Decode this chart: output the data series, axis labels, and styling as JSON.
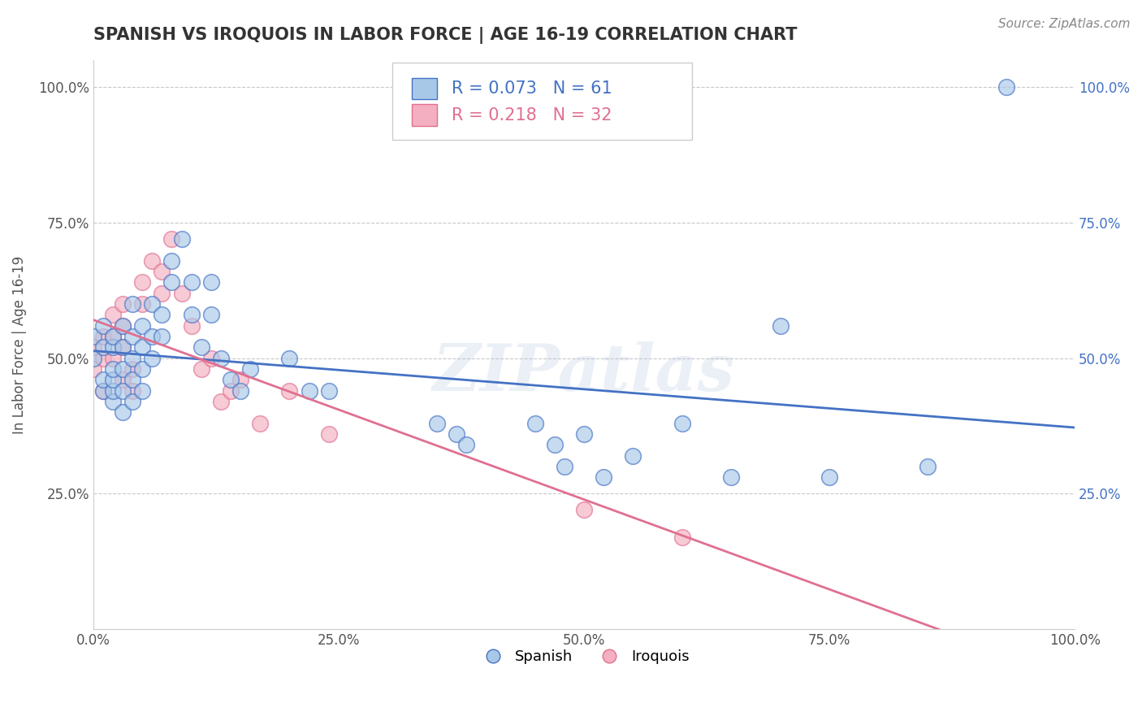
{
  "title": "SPANISH VS IROQUOIS IN LABOR FORCE | AGE 16-19 CORRELATION CHART",
  "source": "Source: ZipAtlas.com",
  "ylabel_label": "In Labor Force | Age 16-19",
  "r_spanish": 0.073,
  "n_spanish": 61,
  "r_iroquois": 0.218,
  "n_iroquois": 32,
  "spanish_color": "#a8c8e8",
  "iroquois_color": "#f4afc0",
  "spanish_line_color": "#4472c4",
  "iroquois_line_color": "#e07090",
  "background_color": "#ffffff",
  "grid_color": "#c8c8c8",
  "watermark": "ZIPatlas",
  "xlim": [
    0.0,
    1.0
  ],
  "ylim": [
    0.0,
    1.05
  ],
  "x_ticks": [
    0.0,
    0.25,
    0.5,
    0.75,
    1.0
  ],
  "x_tick_labels": [
    "0.0%",
    "25.0%",
    "50.0%",
    "75.0%",
    "100.0%"
  ],
  "y_tick_labels": [
    "25.0%",
    "50.0%",
    "75.0%",
    "100.0%"
  ],
  "y_ticks": [
    0.25,
    0.5,
    0.75,
    1.0
  ],
  "spanish_x": [
    0.0,
    0.0,
    0.01,
    0.01,
    0.01,
    0.01,
    0.02,
    0.02,
    0.02,
    0.02,
    0.02,
    0.02,
    0.03,
    0.03,
    0.03,
    0.03,
    0.03,
    0.04,
    0.04,
    0.04,
    0.04,
    0.04,
    0.05,
    0.05,
    0.05,
    0.05,
    0.06,
    0.06,
    0.06,
    0.07,
    0.07,
    0.08,
    0.08,
    0.09,
    0.1,
    0.1,
    0.11,
    0.12,
    0.12,
    0.13,
    0.14,
    0.15,
    0.16,
    0.2,
    0.22,
    0.24,
    0.35,
    0.37,
    0.38,
    0.45,
    0.47,
    0.48,
    0.5,
    0.52,
    0.55,
    0.6,
    0.65,
    0.7,
    0.75,
    0.85,
    0.93
  ],
  "spanish_y": [
    0.5,
    0.54,
    0.44,
    0.46,
    0.52,
    0.56,
    0.42,
    0.44,
    0.46,
    0.48,
    0.52,
    0.54,
    0.4,
    0.44,
    0.48,
    0.52,
    0.56,
    0.42,
    0.46,
    0.5,
    0.54,
    0.6,
    0.44,
    0.48,
    0.52,
    0.56,
    0.5,
    0.54,
    0.6,
    0.54,
    0.58,
    0.64,
    0.68,
    0.72,
    0.58,
    0.64,
    0.52,
    0.58,
    0.64,
    0.5,
    0.46,
    0.44,
    0.48,
    0.5,
    0.44,
    0.44,
    0.38,
    0.36,
    0.34,
    0.38,
    0.34,
    0.3,
    0.36,
    0.28,
    0.32,
    0.38,
    0.28,
    0.56,
    0.28,
    0.3,
    1.0
  ],
  "iroquois_x": [
    0.0,
    0.0,
    0.01,
    0.01,
    0.01,
    0.02,
    0.02,
    0.02,
    0.03,
    0.03,
    0.03,
    0.03,
    0.04,
    0.04,
    0.05,
    0.05,
    0.06,
    0.07,
    0.07,
    0.08,
    0.09,
    0.1,
    0.11,
    0.12,
    0.13,
    0.14,
    0.15,
    0.17,
    0.2,
    0.24,
    0.5,
    0.6
  ],
  "iroquois_y": [
    0.48,
    0.52,
    0.44,
    0.5,
    0.54,
    0.5,
    0.54,
    0.58,
    0.46,
    0.52,
    0.56,
    0.6,
    0.44,
    0.48,
    0.6,
    0.64,
    0.68,
    0.62,
    0.66,
    0.72,
    0.62,
    0.56,
    0.48,
    0.5,
    0.42,
    0.44,
    0.46,
    0.38,
    0.44,
    0.36,
    0.22,
    0.17
  ],
  "trendline_spanish_x0": 0.53,
  "trendline_spanish_x1": 0.62,
  "trendline_iroquois_x0": 0.47,
  "trendline_iroquois_x1": 0.73
}
